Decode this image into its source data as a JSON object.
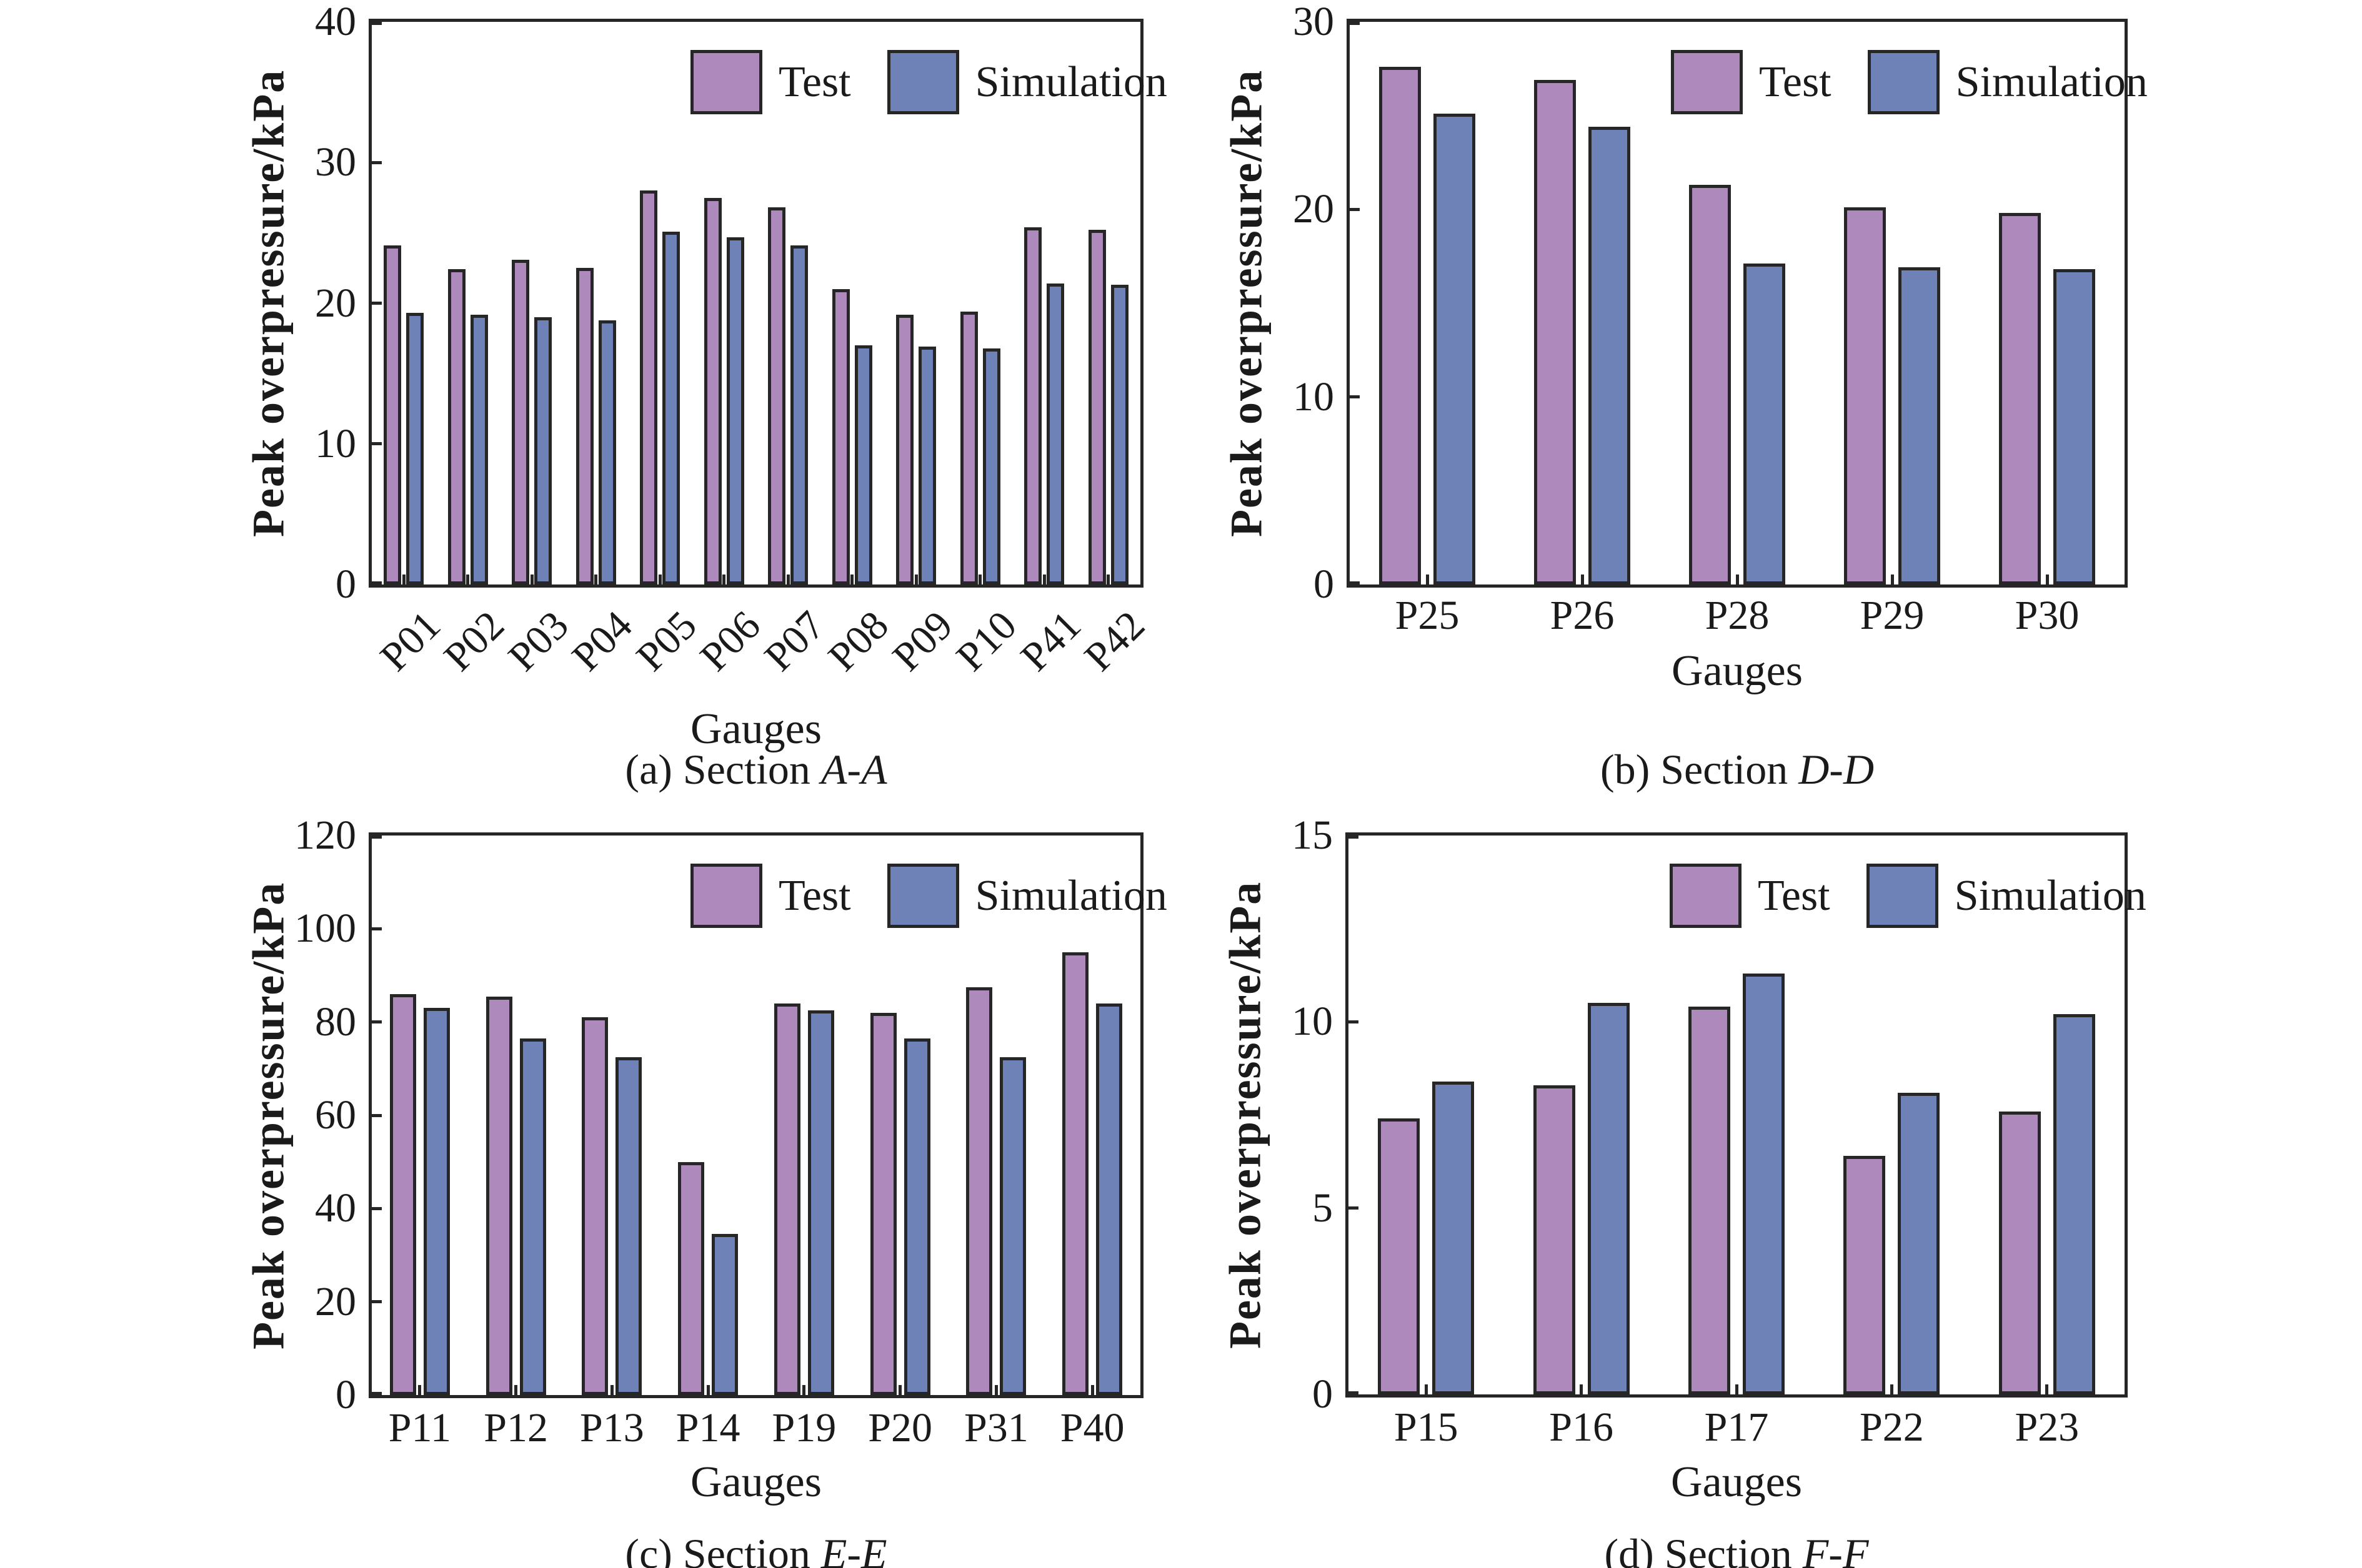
{
  "figure": {
    "background": "#ffffff",
    "text_color": "#1a1a1a",
    "colors": {
      "test_fill": "#ad8abb",
      "simulation_fill": "#6f82b8",
      "edge": "#262626"
    }
  },
  "chart_data": [
    {
      "type": "bar",
      "panel": "a",
      "caption_prefix": "(a) Section ",
      "caption_section": "A-A",
      "xlabel": "Gauges",
      "ylabel": "Peak overpressure/kPa",
      "ylim": [
        0,
        40
      ],
      "yticks": [
        0,
        10,
        20,
        30,
        40
      ],
      "xtick_rotation": 45,
      "grid": false,
      "legend_position": "top-right-inside",
      "categories": [
        "P01",
        "P02",
        "P03",
        "P04",
        "P05",
        "P06",
        "P07",
        "P08",
        "P09",
        "P10",
        "P41",
        "P42"
      ],
      "series": [
        {
          "name": "Test",
          "values": [
            24.1,
            22.4,
            23.1,
            22.5,
            28.0,
            27.5,
            26.8,
            21.0,
            19.2,
            19.4,
            25.4,
            25.2
          ]
        },
        {
          "name": "Simulation",
          "values": [
            19.3,
            19.2,
            19.0,
            18.8,
            25.1,
            24.7,
            24.1,
            17.0,
            16.9,
            16.8,
            21.4,
            21.3
          ]
        }
      ]
    },
    {
      "type": "bar",
      "panel": "b",
      "caption_prefix": "(b) Section ",
      "caption_section": "D-D",
      "xlabel": "Gauges",
      "ylabel": "Peak overpressure/kPa",
      "ylim": [
        0,
        30
      ],
      "yticks": [
        0,
        10,
        20,
        30
      ],
      "xtick_rotation": 0,
      "grid": false,
      "legend_position": "top-right-inside",
      "categories": [
        "P25",
        "P26",
        "P28",
        "P29",
        "P30"
      ],
      "series": [
        {
          "name": "Test",
          "values": [
            27.6,
            26.9,
            21.3,
            20.1,
            19.8
          ]
        },
        {
          "name": "Simulation",
          "values": [
            25.1,
            24.4,
            17.1,
            16.9,
            16.8
          ]
        }
      ]
    },
    {
      "type": "bar",
      "panel": "c",
      "caption_prefix": "(c) Section ",
      "caption_section": "E-E",
      "xlabel": "Gauges",
      "ylabel": "Peak overpressure/kPa",
      "ylim": [
        0,
        120
      ],
      "yticks": [
        0,
        20,
        40,
        60,
        80,
        100,
        120
      ],
      "xtick_rotation": 0,
      "grid": false,
      "legend_position": "top-right-inside",
      "categories": [
        "P11",
        "P12",
        "P13",
        "P14",
        "P19",
        "P20",
        "P31",
        "P40"
      ],
      "series": [
        {
          "name": "Test",
          "values": [
            86.0,
            85.5,
            81.0,
            50.0,
            84.0,
            82.0,
            87.5,
            95.0
          ]
        },
        {
          "name": "Simulation",
          "values": [
            83.0,
            76.5,
            72.5,
            34.5,
            82.5,
            76.5,
            72.5,
            84.0
          ]
        }
      ]
    },
    {
      "type": "bar",
      "panel": "d",
      "caption_prefix": "(d) Section ",
      "caption_section": "F-F",
      "xlabel": "Gauges",
      "ylabel": "Peak overpressure/kPa",
      "ylim": [
        0,
        15
      ],
      "yticks": [
        0,
        5,
        10,
        15
      ],
      "xtick_rotation": 0,
      "grid": false,
      "legend_position": "top-right-inside",
      "categories": [
        "P15",
        "P16",
        "P17",
        "P22",
        "P23"
      ],
      "series": [
        {
          "name": "Test",
          "values": [
            7.4,
            8.3,
            10.4,
            6.4,
            7.6
          ]
        },
        {
          "name": "Simulation",
          "values": [
            8.4,
            10.5,
            11.3,
            8.1,
            10.2
          ]
        }
      ]
    }
  ]
}
